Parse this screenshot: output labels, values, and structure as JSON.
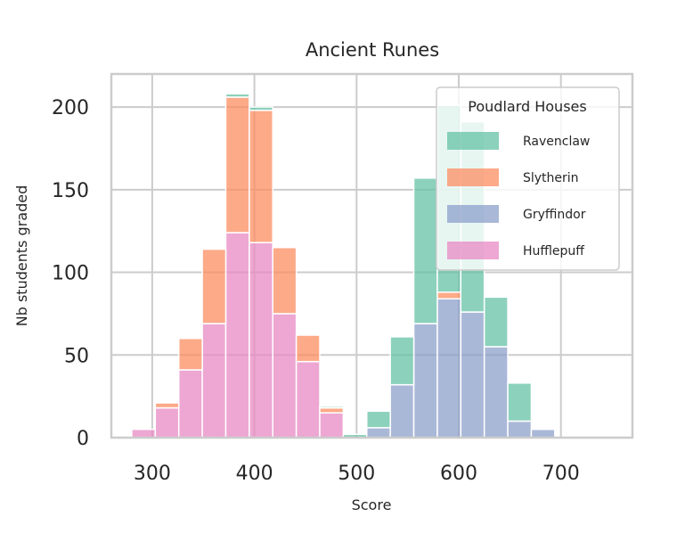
{
  "chart_data": {
    "type": "bar",
    "stacked": true,
    "title": "Ancient Runes",
    "xlabel": "Score",
    "ylabel": "Nb students graded",
    "xlim": [
      260,
      770
    ],
    "ylim": [
      0,
      220
    ],
    "xticks": [
      300,
      400,
      500,
      600,
      700
    ],
    "yticks": [
      0,
      50,
      100,
      150,
      200
    ],
    "bin_starts": [
      280,
      303,
      326,
      349,
      372,
      395,
      418,
      441,
      464,
      487,
      510,
      533,
      556,
      579,
      602,
      625,
      648,
      671,
      694,
      717
    ],
    "bin_width": 23,
    "grid": true,
    "legend": {
      "title": "Poudlard Houses",
      "placement": "top-right"
    },
    "series": [
      {
        "name": "Hufflepuff",
        "color": "#e78ac3",
        "values": [
          5,
          18,
          41,
          69,
          124,
          118,
          75,
          46,
          15,
          0,
          0,
          0,
          0,
          0,
          0,
          0,
          0,
          0,
          0,
          0
        ]
      },
      {
        "name": "Gryffindor",
        "color": "#8da0cb",
        "values": [
          0,
          0,
          0,
          0,
          0,
          0,
          0,
          0,
          0,
          0,
          6,
          32,
          69,
          84,
          76,
          55,
          10,
          5,
          0,
          0
        ]
      },
      {
        "name": "Slytherin",
        "color": "#fc8d62",
        "values": [
          0,
          3,
          19,
          45,
          82,
          80,
          40,
          16,
          3,
          0,
          0,
          0,
          0,
          4,
          0,
          0,
          0,
          0,
          0,
          0
        ]
      },
      {
        "name": "Ravenclaw",
        "color": "#66c2a5",
        "values": [
          0,
          0,
          0,
          0,
          2,
          2,
          0,
          0,
          1,
          2,
          10,
          29,
          88,
          113,
          115,
          30,
          23,
          0,
          0,
          0
        ]
      }
    ]
  },
  "legend_order": [
    "Ravenclaw",
    "Slytherin",
    "Gryffindor",
    "Hufflepuff"
  ]
}
